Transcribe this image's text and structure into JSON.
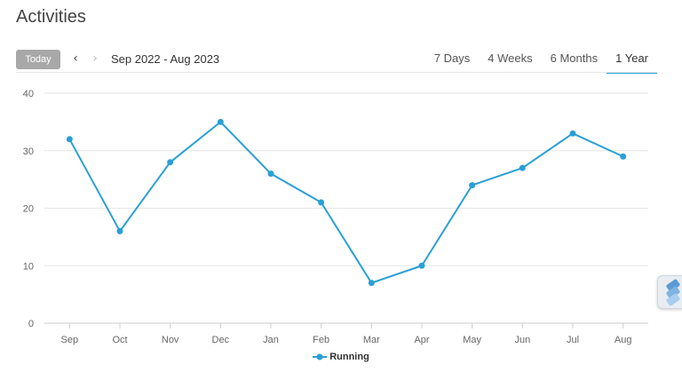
{
  "page": {
    "title": "Activities"
  },
  "toolbar": {
    "today_label": "Today",
    "prev_icon": "chevron-left-icon",
    "next_icon": "chevron-right-icon",
    "date_range": "Sep 2022 - Aug 2023",
    "tabs": [
      {
        "label": "7 Days",
        "active": false
      },
      {
        "label": "4 Weeks",
        "active": false
      },
      {
        "label": "6 Months",
        "active": false
      },
      {
        "label": "1 Year",
        "active": true
      }
    ]
  },
  "colors": {
    "accent": "#2a9fd6",
    "grid": "#e6e6e6",
    "axis_text": "#666666"
  },
  "side_widget_icon": "bookmark-stack-icon",
  "chart_data": {
    "type": "line",
    "categories": [
      "Sep",
      "Oct",
      "Nov",
      "Dec",
      "Jan",
      "Feb",
      "Mar",
      "Apr",
      "May",
      "Jun",
      "Jul",
      "Aug"
    ],
    "series": [
      {
        "name": "Running",
        "values": [
          32,
          16,
          28,
          35,
          26,
          21,
          7,
          10,
          24,
          27,
          33,
          29
        ]
      }
    ],
    "yticks": [
      0,
      10,
      20,
      30,
      40
    ],
    "ylim": [
      0,
      40
    ],
    "grid": true,
    "legend": "bottom-center"
  }
}
